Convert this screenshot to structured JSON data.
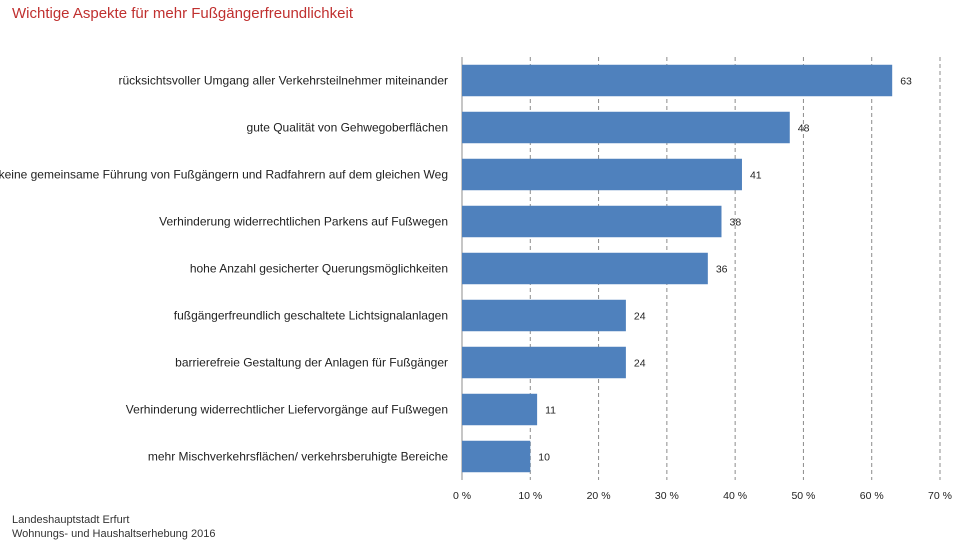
{
  "title": "Wichtige Aspekte für mehr Fußgängerfreundlichkeit",
  "footer": {
    "line1": "Landeshauptstadt Erfurt",
    "line2": "Wohnungs- und Haushaltserhebung 2016"
  },
  "colors": {
    "title": "#c0302f",
    "bar": "#4f81bd",
    "grid": "#8c8c8c"
  },
  "chart_data": {
    "type": "bar",
    "orientation": "horizontal",
    "categories": [
      "rücksichtsvoller Umgang aller Verkehrsteilnehmer miteinander",
      "gute Qualität von Gehwegoberflächen",
      "keine gemeinsame Führung von Fußgängern und Radfahrern auf dem gleichen Weg",
      "Verhinderung widerrechtlichen Parkens auf Fußwegen",
      "hohe Anzahl gesicherter Querungsmöglichkeiten",
      "fußgängerfreundlich geschaltete Lichtsignalanlagen",
      "barrierefreie Gestaltung der Anlagen für Fußgänger",
      "Verhinderung widerrechtlicher Liefervorgänge auf Fußwegen",
      "mehr Mischverkehrsflächen/ verkehrsberuhigte Bereiche"
    ],
    "values": [
      63,
      48,
      41,
      38,
      36,
      24,
      24,
      11,
      10
    ],
    "xlim": [
      0,
      70
    ],
    "xticks": [
      0,
      10,
      20,
      30,
      40,
      50,
      60,
      70
    ],
    "xtick_labels": [
      "0 %",
      "10 %",
      "20 %",
      "30 %",
      "40 %",
      "50 %",
      "60 %",
      "70 %"
    ],
    "grid": "vertical-dashed",
    "data_labels": true
  }
}
